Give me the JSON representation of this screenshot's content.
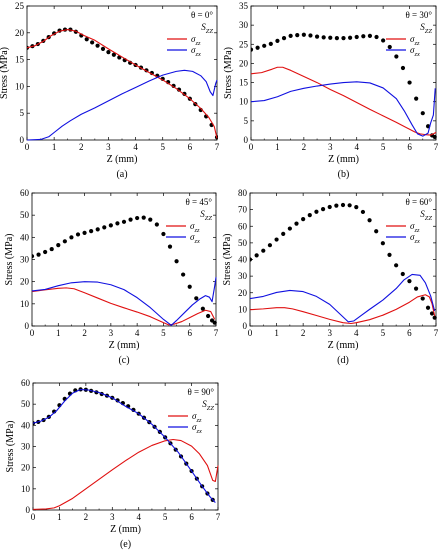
{
  "figure": {
    "panel_labels": [
      "(a)",
      "(b)",
      "(c)",
      "(d)",
      "(e)"
    ]
  },
  "colors": {
    "szz": "#000000",
    "sigma_zz": "#e01010",
    "sigma_zx": "#1010e0",
    "axis": "#000000"
  },
  "chart_data": [
    {
      "id": "a",
      "type": "line",
      "panel_label": "(a)",
      "annotation": "θ = 0°",
      "xlabel": "Z (mm)",
      "ylabel": "Stress (MPa)",
      "xlim": [
        0,
        7
      ],
      "ylim": [
        0,
        25
      ],
      "xticks": [
        0,
        1,
        2,
        3,
        4,
        5,
        6,
        7
      ],
      "yticks": [
        0,
        5,
        10,
        15,
        20,
        25
      ],
      "grid": false,
      "legend_position": "right, below annotation",
      "legend": [
        "S_ZZ",
        "σ_zz",
        "σ_zx"
      ],
      "series": [
        {
          "key": "szz",
          "name": "S_ZZ",
          "style": "dots",
          "x": [
            0,
            0.2,
            0.4,
            0.6,
            0.8,
            1.0,
            1.2,
            1.4,
            1.6,
            1.8,
            2.0,
            2.2,
            2.4,
            2.6,
            2.8,
            3.0,
            3.2,
            3.4,
            3.6,
            3.8,
            4.0,
            4.2,
            4.4,
            4.6,
            4.8,
            5.0,
            5.2,
            5.4,
            5.6,
            5.8,
            6.0,
            6.2,
            6.4,
            6.6,
            6.8,
            7.0
          ],
          "y": [
            17.2,
            17.5,
            17.9,
            18.5,
            19.2,
            19.9,
            20.4,
            20.6,
            20.6,
            20.2,
            19.5,
            18.8,
            18.2,
            17.6,
            17.0,
            16.4,
            15.9,
            15.4,
            14.9,
            14.4,
            14.0,
            13.5,
            13.0,
            12.5,
            12.0,
            11.4,
            10.8,
            10.1,
            9.4,
            8.6,
            7.7,
            6.7,
            5.6,
            4.4,
            2.8,
            0.5
          ]
        },
        {
          "key": "sigma_zz",
          "name": "σ_zz",
          "style": "line",
          "x": [
            0,
            0.3,
            0.6,
            0.9,
            1.2,
            1.5,
            1.8,
            2.1,
            2.5,
            3.0,
            3.5,
            4.0,
            4.5,
            5.0,
            5.5,
            6.0,
            6.4,
            6.7,
            6.9,
            7.0
          ],
          "y": [
            17.2,
            17.6,
            18.4,
            19.5,
            20.3,
            20.6,
            20.3,
            19.5,
            18.6,
            17.0,
            15.5,
            14.0,
            12.6,
            11.2,
            9.6,
            7.7,
            5.9,
            4.2,
            2.5,
            0.3
          ]
        },
        {
          "key": "sigma_zx",
          "name": "σ_zx",
          "style": "line",
          "x": [
            0,
            0.5,
            0.8,
            1.0,
            1.3,
            1.6,
            2.0,
            2.5,
            3.0,
            3.5,
            4.0,
            4.5,
            5.0,
            5.5,
            5.8,
            6.1,
            6.4,
            6.6,
            6.75,
            6.85,
            6.95,
            7.0
          ],
          "y": [
            0,
            0.1,
            0.6,
            1.4,
            2.6,
            3.6,
            4.8,
            6.0,
            7.3,
            8.6,
            9.8,
            11.0,
            12.1,
            12.8,
            13.0,
            12.8,
            12.0,
            10.9,
            9.0,
            8.3,
            10.5,
            11.2
          ]
        }
      ]
    },
    {
      "id": "b",
      "type": "line",
      "panel_label": "(b)",
      "annotation": "θ = 30°",
      "xlabel": "Z (mm)",
      "ylabel": "Stress (MPa)",
      "xlim": [
        0,
        7
      ],
      "ylim": [
        0,
        35
      ],
      "xticks": [
        0,
        1,
        2,
        3,
        4,
        5,
        6,
        7
      ],
      "yticks": [
        0,
        5,
        10,
        15,
        20,
        25,
        30,
        35
      ],
      "grid": false,
      "legend_position": "right, below annotation",
      "legend": [
        "S_ZZ",
        "σ_zz",
        "σ_zx"
      ],
      "series": [
        {
          "key": "szz",
          "name": "S_ZZ",
          "style": "dots",
          "x": [
            0,
            0.25,
            0.5,
            0.75,
            1.0,
            1.25,
            1.5,
            1.75,
            2.0,
            2.25,
            2.5,
            2.75,
            3.0,
            3.25,
            3.5,
            3.75,
            4.0,
            4.25,
            4.5,
            4.75,
            5.0,
            5.25,
            5.5,
            5.75,
            6.0,
            6.25,
            6.5,
            6.7,
            6.85,
            6.95
          ],
          "y": [
            23.6,
            24.1,
            24.6,
            25.1,
            25.9,
            26.6,
            27.2,
            27.4,
            27.5,
            27.3,
            27.0,
            26.8,
            26.7,
            26.6,
            26.6,
            26.7,
            26.9,
            27.1,
            27.2,
            26.9,
            26.0,
            24.3,
            21.8,
            18.8,
            15.0,
            10.8,
            7.0,
            3.6,
            1.2,
            0.8
          ]
        },
        {
          "key": "sigma_zz",
          "name": "σ_zz",
          "style": "line",
          "x": [
            0,
            0.4,
            0.8,
            1.0,
            1.2,
            1.5,
            2.0,
            2.5,
            3.0,
            3.5,
            4.0,
            4.5,
            5.0,
            5.5,
            6.0,
            6.2,
            6.4,
            6.6,
            6.8,
            6.9,
            7.0
          ],
          "y": [
            17.3,
            17.6,
            18.5,
            19.0,
            19.0,
            18.2,
            16.6,
            15.0,
            13.2,
            11.6,
            9.8,
            8.0,
            6.3,
            4.6,
            2.8,
            2.1,
            1.6,
            1.4,
            1.3,
            1.6,
            2.0
          ]
        },
        {
          "key": "sigma_zx",
          "name": "σ_zx",
          "style": "line",
          "x": [
            0,
            0.5,
            1.0,
            1.5,
            2.0,
            2.5,
            3.0,
            3.5,
            4.0,
            4.5,
            5.0,
            5.5,
            5.8,
            6.1,
            6.3,
            6.5,
            6.7,
            6.8,
            6.9,
            6.97
          ],
          "y": [
            10.0,
            10.3,
            11.3,
            12.7,
            13.5,
            14.1,
            14.6,
            15.0,
            15.2,
            14.9,
            13.6,
            10.8,
            7.6,
            3.9,
            1.6,
            1.0,
            1.8,
            4.5,
            6.5,
            13.5
          ]
        }
      ]
    },
    {
      "id": "c",
      "type": "line",
      "panel_label": "(c)",
      "annotation": "θ = 45°",
      "xlabel": "Z (mm)",
      "ylabel": "Stress (MPa)",
      "xlim": [
        0,
        7
      ],
      "ylim": [
        0,
        60
      ],
      "xticks": [
        0,
        1,
        2,
        3,
        4,
        5,
        6,
        7
      ],
      "yticks": [
        0,
        10,
        20,
        30,
        40,
        50,
        60
      ],
      "grid": false,
      "legend_position": "right, below annotation",
      "legend": [
        "S_ZZ",
        "σ_zz",
        "σ_zx"
      ],
      "series": [
        {
          "key": "szz",
          "name": "S_ZZ",
          "style": "dots",
          "x": [
            0,
            0.25,
            0.5,
            0.75,
            1.0,
            1.25,
            1.5,
            1.75,
            2.0,
            2.25,
            2.5,
            2.75,
            3.0,
            3.25,
            3.5,
            3.75,
            4.0,
            4.25,
            4.5,
            4.75,
            5.0,
            5.25,
            5.5,
            5.75,
            6.0,
            6.25,
            6.5,
            6.7,
            6.85,
            6.95
          ],
          "y": [
            31.5,
            32.2,
            33.4,
            34.7,
            36.5,
            38.2,
            40.0,
            41.3,
            42.0,
            42.8,
            43.6,
            44.5,
            45.4,
            46.3,
            47.0,
            48.0,
            48.7,
            48.9,
            48.0,
            45.8,
            41.5,
            35.8,
            29.2,
            23.2,
            17.7,
            12.5,
            7.8,
            4.5,
            2.5,
            1.5
          ]
        },
        {
          "key": "sigma_zz",
          "name": "σ_zz",
          "style": "line",
          "x": [
            0,
            0.5,
            1.0,
            1.3,
            1.6,
            2.0,
            2.5,
            3.0,
            3.5,
            4.0,
            4.5,
            5.0,
            5.2,
            5.4,
            5.7,
            6.0,
            6.3,
            6.6,
            6.8,
            6.95
          ],
          "y": [
            15.5,
            16.3,
            17.0,
            17.2,
            16.8,
            15.0,
            12.6,
            10.2,
            8.2,
            6.3,
            4.2,
            1.5,
            0.5,
            0.8,
            2.0,
            3.8,
            5.6,
            7.1,
            6.5,
            3.0
          ]
        },
        {
          "key": "sigma_zx",
          "name": "σ_zx",
          "style": "line",
          "x": [
            0,
            0.5,
            1.0,
            1.5,
            2.0,
            2.5,
            3.0,
            3.5,
            4.0,
            4.5,
            5.0,
            5.3,
            5.5,
            5.8,
            6.1,
            6.4,
            6.6,
            6.75,
            6.85,
            6.95,
            7.0
          ],
          "y": [
            15.8,
            16.5,
            18.2,
            19.5,
            20.0,
            19.8,
            18.6,
            16.4,
            12.8,
            8.3,
            3.0,
            0.3,
            2.5,
            6.0,
            9.5,
            12.3,
            13.7,
            13.0,
            11.0,
            18.0,
            22.0
          ]
        }
      ]
    },
    {
      "id": "d",
      "type": "line",
      "panel_label": "(d)",
      "annotation": "θ = 60°",
      "xlabel": "Z (mm)",
      "ylabel": "Stress (MPa)",
      "xlim": [
        0,
        7
      ],
      "ylim": [
        0,
        80
      ],
      "xticks": [
        0,
        1,
        2,
        3,
        4,
        5,
        6,
        7
      ],
      "yticks": [
        0,
        10,
        20,
        30,
        40,
        50,
        60,
        70,
        80
      ],
      "grid": false,
      "legend_position": "right, below annotation",
      "legend": [
        "S_ZZ",
        "σ_zz",
        "σ_zx"
      ],
      "series": [
        {
          "key": "szz",
          "name": "S_ZZ",
          "style": "dots",
          "x": [
            0,
            0.25,
            0.5,
            0.75,
            1.0,
            1.25,
            1.5,
            1.75,
            2.0,
            2.25,
            2.5,
            2.75,
            3.0,
            3.25,
            3.5,
            3.75,
            4.0,
            4.25,
            4.5,
            4.75,
            5.0,
            5.25,
            5.5,
            5.75,
            6.0,
            6.25,
            6.5,
            6.7,
            6.85,
            6.95
          ],
          "y": [
            40.0,
            42.5,
            45.3,
            48.6,
            52.0,
            55.4,
            58.6,
            61.6,
            64.3,
            66.7,
            68.7,
            70.3,
            71.6,
            72.4,
            72.8,
            72.6,
            71.5,
            68.6,
            63.6,
            57.0,
            49.8,
            42.8,
            36.5,
            31.3,
            27.0,
            22.5,
            16.5,
            11.0,
            7.5,
            5.0
          ]
        },
        {
          "key": "sigma_zz",
          "name": "σ_zz",
          "style": "line",
          "x": [
            0,
            0.5,
            1.0,
            1.3,
            1.6,
            2.0,
            2.5,
            3.0,
            3.5,
            3.8,
            4.0,
            4.5,
            5.0,
            5.5,
            6.0,
            6.3,
            6.6,
            6.75,
            6.85,
            6.95
          ],
          "y": [
            9.8,
            10.3,
            11.0,
            11.0,
            10.3,
            8.6,
            6.3,
            4.0,
            2.0,
            1.5,
            2.0,
            3.8,
            6.5,
            10.0,
            14.3,
            17.5,
            18.8,
            17.5,
            13.5,
            6.0
          ]
        },
        {
          "key": "sigma_zx",
          "name": "σ_zx",
          "style": "line",
          "x": [
            0,
            0.5,
            1.0,
            1.5,
            2.0,
            2.5,
            3.0,
            3.5,
            3.7,
            3.9,
            4.2,
            4.5,
            5.0,
            5.5,
            5.8,
            6.1,
            6.4,
            6.6,
            6.8,
            6.95
          ],
          "y": [
            16.5,
            17.8,
            20.2,
            21.4,
            20.7,
            17.8,
            13.0,
            5.5,
            2.5,
            3.0,
            6.5,
            10.0,
            15.6,
            22.5,
            27.8,
            31.0,
            30.5,
            26.0,
            18.0,
            9.0
          ]
        }
      ]
    },
    {
      "id": "e",
      "type": "line",
      "panel_label": "(e)",
      "annotation": "θ = 90°",
      "xlabel": "Z (mm)",
      "ylabel": "Stress (MPa)",
      "xlim": [
        0,
        7
      ],
      "ylim": [
        0,
        60
      ],
      "xticks": [
        0,
        1,
        2,
        3,
        4,
        5,
        6,
        7
      ],
      "yticks": [
        0,
        10,
        20,
        30,
        40,
        50,
        60
      ],
      "grid": false,
      "legend_position": "right, below annotation",
      "legend": [
        "S_ZZ",
        "σ_zz",
        "σ_zx"
      ],
      "series": [
        {
          "key": "szz",
          "name": "S_ZZ",
          "style": "dots",
          "x": [
            0,
            0.2,
            0.4,
            0.6,
            0.8,
            1.0,
            1.2,
            1.4,
            1.6,
            1.8,
            2.0,
            2.2,
            2.4,
            2.6,
            2.8,
            3.0,
            3.2,
            3.4,
            3.6,
            3.8,
            4.0,
            4.2,
            4.4,
            4.6,
            4.8,
            5.0,
            5.2,
            5.4,
            5.6,
            5.8,
            6.0,
            6.2,
            6.4,
            6.6,
            6.8
          ],
          "y": [
            41.0,
            41.6,
            42.5,
            44.0,
            46.5,
            49.5,
            52.5,
            55.0,
            56.5,
            57.0,
            56.8,
            56.3,
            55.6,
            54.8,
            54.0,
            53.0,
            51.8,
            50.5,
            49.0,
            47.3,
            45.5,
            43.6,
            41.5,
            39.3,
            36.9,
            34.3,
            31.5,
            28.5,
            25.3,
            21.9,
            18.4,
            14.8,
            11.2,
            7.8,
            4.8
          ]
        },
        {
          "key": "sigma_zz",
          "name": "σ_zz",
          "style": "line",
          "x": [
            0,
            0.5,
            0.8,
            1.0,
            1.5,
            2.0,
            2.5,
            3.0,
            3.5,
            4.0,
            4.5,
            5.0,
            5.3,
            5.6,
            6.0,
            6.3,
            6.6,
            6.8,
            6.9,
            7.0
          ],
          "y": [
            0.3,
            0.5,
            1.0,
            2.0,
            5.5,
            10.0,
            14.5,
            19.0,
            23.3,
            27.3,
            30.5,
            32.7,
            33.3,
            32.8,
            30.2,
            26.5,
            21.0,
            14.0,
            13.5,
            21.0
          ]
        },
        {
          "key": "sigma_zx",
          "name": "σ_zx",
          "style": "line",
          "x": [
            0,
            0.3,
            0.6,
            0.9,
            1.2,
            1.5,
            1.8,
            2.1,
            2.5,
            3.0,
            3.5,
            4.0,
            4.5,
            5.0,
            5.5,
            6.0,
            6.4,
            6.7,
            6.9
          ],
          "y": [
            41.0,
            42.0,
            43.8,
            47.0,
            51.5,
            55.2,
            56.9,
            56.7,
            55.5,
            53.0,
            49.0,
            45.5,
            40.5,
            34.3,
            27.2,
            18.4,
            11.2,
            6.2,
            3.5
          ]
        }
      ]
    }
  ]
}
